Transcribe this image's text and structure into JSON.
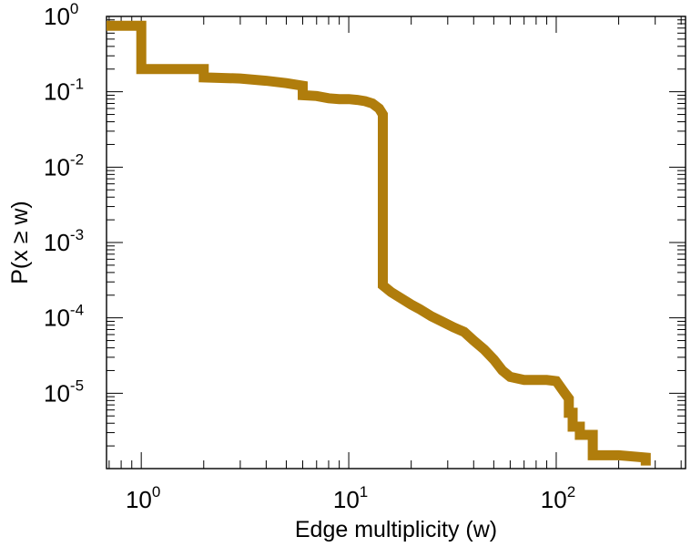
{
  "chart_data": {
    "type": "line",
    "title": "",
    "xlabel": "Edge multiplicity (w)",
    "ylabel": "P(x ≥ w)",
    "x_scale": "log",
    "y_scale": "log",
    "xlim": [
      0.68,
      420
    ],
    "ylim": [
      1e-06,
      1
    ],
    "grid": false,
    "line_color": "#b07d0c",
    "x_ticks": [
      {
        "base": "10",
        "exp": "0",
        "value": 1
      },
      {
        "base": "10",
        "exp": "1",
        "value": 10
      },
      {
        "base": "10",
        "exp": "2",
        "value": 100
      }
    ],
    "y_ticks": [
      {
        "base": "10",
        "exp": "0",
        "value": 1
      },
      {
        "base": "10",
        "exp": "-1",
        "value": 0.1
      },
      {
        "base": "10",
        "exp": "-2",
        "value": 0.01
      },
      {
        "base": "10",
        "exp": "-3",
        "value": 0.001
      },
      {
        "base": "10",
        "exp": "-4",
        "value": 0.0001
      },
      {
        "base": "10",
        "exp": "-5",
        "value": 1e-05
      }
    ],
    "series": [
      {
        "x": [
          0.68,
          1,
          1,
          2,
          2,
          3,
          4,
          5,
          6,
          6,
          7,
          8,
          9,
          10,
          11,
          12,
          13,
          14,
          14.6,
          14.6,
          16,
          18,
          20,
          22,
          25,
          28,
          32,
          36,
          40,
          45,
          50,
          55,
          60,
          70,
          80,
          90,
          100,
          105,
          110,
          115,
          115,
          120,
          120,
          130,
          130,
          150,
          150,
          200,
          270,
          270
        ],
        "y": [
          0.75,
          0.75,
          0.2,
          0.2,
          0.155,
          0.15,
          0.14,
          0.13,
          0.12,
          0.09,
          0.088,
          0.082,
          0.08,
          0.08,
          0.078,
          0.075,
          0.07,
          0.06,
          0.05,
          0.00027,
          0.00022,
          0.00018,
          0.00015,
          0.00013,
          0.000105,
          9e-05,
          7.5e-05,
          6.5e-05,
          5e-05,
          3.8e-05,
          2.8e-05,
          2e-05,
          1.65e-05,
          1.5e-05,
          1.5e-05,
          1.5e-05,
          1.45e-05,
          1.2e-05,
          1e-05,
          8.5e-06,
          5.5e-06,
          5.5e-06,
          3.6e-06,
          3.6e-06,
          2.8e-06,
          2.8e-06,
          1.5e-06,
          1.5e-06,
          1.4e-06,
          1.1e-06
        ]
      }
    ]
  }
}
